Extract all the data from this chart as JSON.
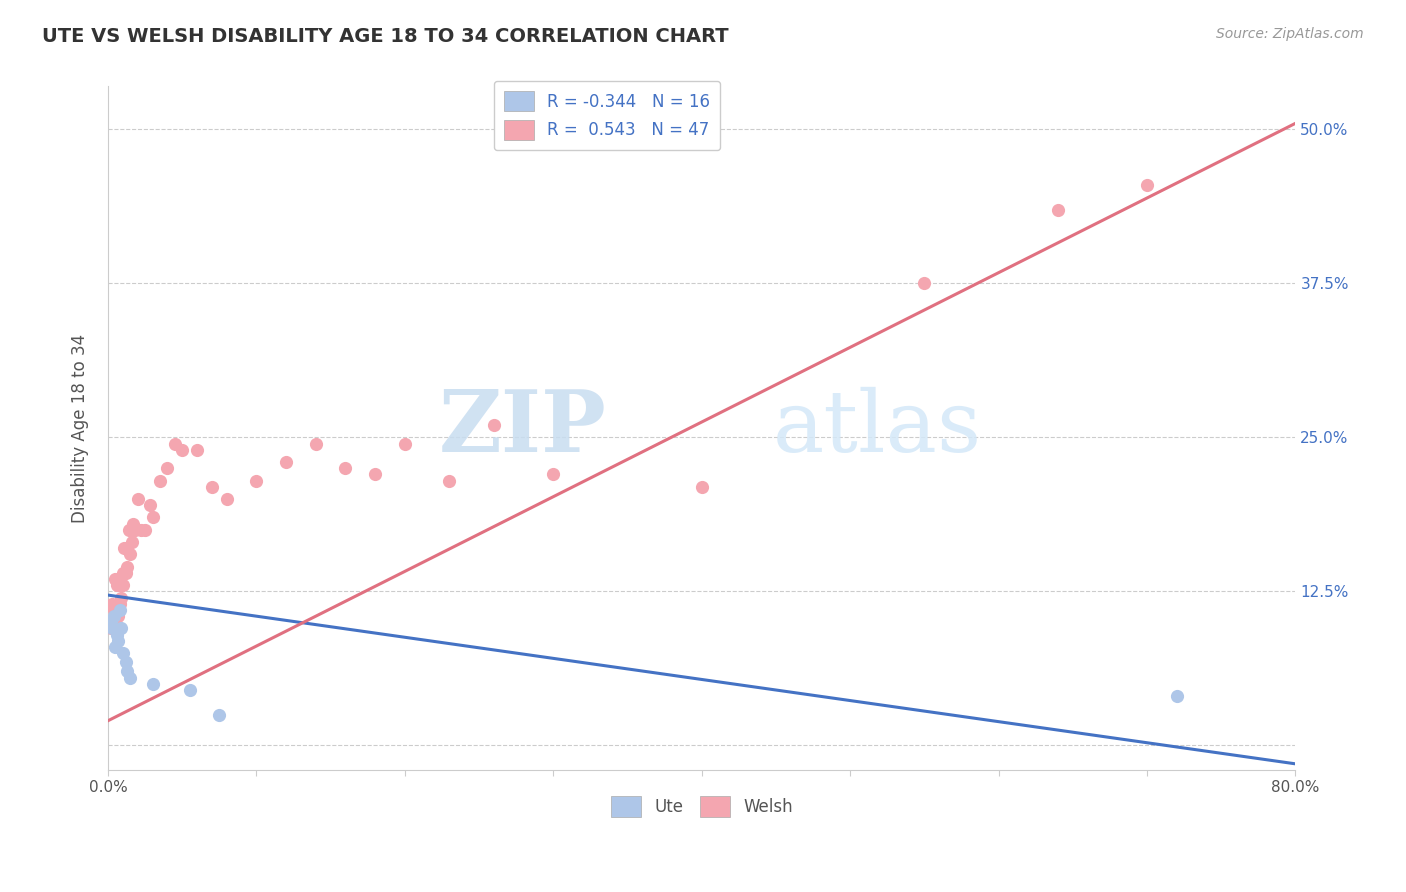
{
  "title": "UTE VS WELSH DISABILITY AGE 18 TO 34 CORRELATION CHART",
  "source": "Source: ZipAtlas.com",
  "ylabel": "Disability Age 18 to 34",
  "xlim": [
    0.0,
    0.8
  ],
  "ylim": [
    -0.02,
    0.535
  ],
  "xticks": [
    0.0,
    0.1,
    0.2,
    0.3,
    0.4,
    0.5,
    0.6,
    0.7,
    0.8
  ],
  "xticklabels": [
    "0.0%",
    "",
    "",
    "",
    "",
    "",
    "",
    "",
    "80.0%"
  ],
  "ytick_positions": [
    0.0,
    0.125,
    0.25,
    0.375,
    0.5
  ],
  "ytick_labels_right": [
    "",
    "12.5%",
    "25.0%",
    "37.5%",
    "50.0%"
  ],
  "grid_color": "#cccccc",
  "bg_color": "#ffffff",
  "ute_color": "#aec6e8",
  "welsh_color": "#f4a6b0",
  "ute_line_color": "#4472c4",
  "welsh_line_color": "#e07080",
  "ute_R": -0.344,
  "ute_N": 16,
  "welsh_R": 0.543,
  "welsh_N": 47,
  "watermark_zip": "ZIP",
  "watermark_atlas": "atlas",
  "ute_line_x0": 0.0,
  "ute_line_y0": 0.122,
  "ute_line_x1": 0.8,
  "ute_line_y1": -0.015,
  "welsh_line_x0": 0.0,
  "welsh_line_y0": 0.02,
  "welsh_line_x1": 0.8,
  "welsh_line_y1": 0.505,
  "ute_scatter_x": [
    0.002,
    0.003,
    0.004,
    0.005,
    0.006,
    0.007,
    0.008,
    0.009,
    0.01,
    0.012,
    0.013,
    0.015,
    0.03,
    0.055,
    0.075,
    0.72
  ],
  "ute_scatter_y": [
    0.1,
    0.095,
    0.105,
    0.08,
    0.09,
    0.085,
    0.11,
    0.095,
    0.075,
    0.068,
    0.06,
    0.055,
    0.05,
    0.045,
    0.025,
    0.04
  ],
  "welsh_scatter_x": [
    0.002,
    0.003,
    0.004,
    0.005,
    0.005,
    0.006,
    0.006,
    0.007,
    0.007,
    0.008,
    0.008,
    0.009,
    0.01,
    0.01,
    0.011,
    0.012,
    0.013,
    0.014,
    0.015,
    0.016,
    0.017,
    0.018,
    0.02,
    0.022,
    0.025,
    0.028,
    0.03,
    0.035,
    0.04,
    0.045,
    0.05,
    0.06,
    0.07,
    0.08,
    0.1,
    0.12,
    0.14,
    0.16,
    0.18,
    0.2,
    0.23,
    0.26,
    0.3,
    0.4,
    0.55,
    0.64,
    0.7
  ],
  "welsh_scatter_y": [
    0.095,
    0.115,
    0.11,
    0.1,
    0.135,
    0.095,
    0.13,
    0.105,
    0.13,
    0.115,
    0.13,
    0.12,
    0.14,
    0.13,
    0.16,
    0.14,
    0.145,
    0.175,
    0.155,
    0.165,
    0.18,
    0.175,
    0.2,
    0.175,
    0.175,
    0.195,
    0.185,
    0.215,
    0.225,
    0.245,
    0.24,
    0.24,
    0.21,
    0.2,
    0.215,
    0.23,
    0.245,
    0.225,
    0.22,
    0.245,
    0.215,
    0.26,
    0.22,
    0.21,
    0.375,
    0.435,
    0.455
  ]
}
